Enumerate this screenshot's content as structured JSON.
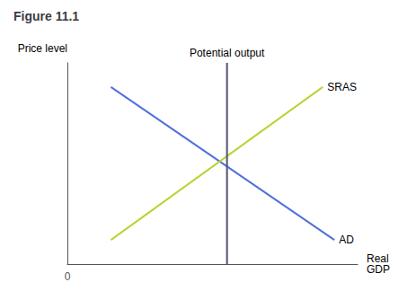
{
  "chart_data": {
    "type": "line",
    "title": "Figure 11.1",
    "xlabel": "Real\nGDP",
    "ylabel": "Price level",
    "xlim": [
      0,
      10
    ],
    "ylim": [
      0,
      10
    ],
    "xticks": [
      0
    ],
    "yticks": [],
    "tick_labels": "x",
    "grid": false,
    "series": [
      {
        "name": "AD",
        "x": [
          1.5,
          9.2
        ],
        "values": [
          8.8,
          1.2
        ]
      },
      {
        "name": "SRAS",
        "x": [
          1.5,
          8.8
        ],
        "values": [
          1.2,
          8.8
        ]
      },
      {
        "name": "Potential output",
        "x": [
          5.5,
          5.5
        ],
        "values": [
          0,
          10
        ]
      }
    ]
  }
}
